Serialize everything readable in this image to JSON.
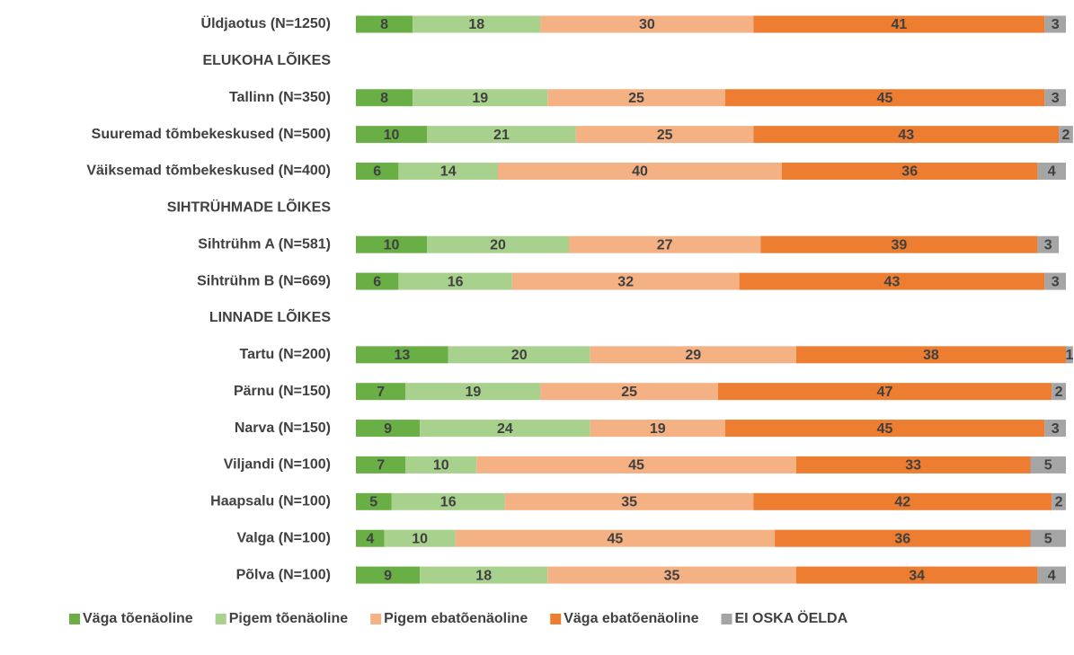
{
  "chart_data": {
    "type": "stacked-bar-horizontal",
    "categories": [
      "Üldjaotus (N=1250)",
      "ELUKOHA LÕIKES",
      "Tallinn (N=350)",
      "Suuremad tõmbekeskused (N=500)",
      "Väiksemad tõmbekeskused (N=400)",
      "SIHTRÜHMADE LÕIKES",
      "Sihtrühm A (N=581)",
      "Sihtrühm B (N=669)",
      "LINNADE LÕIKES",
      "Tartu (N=200)",
      "Pärnu (N=150)",
      "Narva (N=150)",
      "Viljandi (N=100)",
      "Haapsalu (N=100)",
      "Valga (N=100)",
      "Põlva (N=100)"
    ],
    "series": [
      {
        "name": "Väga tõenäoline",
        "color": "#6aaf46",
        "values": [
          8,
          null,
          8,
          10,
          6,
          null,
          10,
          6,
          null,
          13,
          7,
          9,
          7,
          5,
          4,
          9
        ]
      },
      {
        "name": "Pigem tõenäoline",
        "color": "#a9d18e",
        "values": [
          18,
          null,
          19,
          21,
          14,
          null,
          20,
          16,
          null,
          20,
          19,
          24,
          10,
          16,
          10,
          18
        ]
      },
      {
        "name": "Pigem ebatõenäoline",
        "color": "#f4b183",
        "values": [
          30,
          null,
          25,
          25,
          40,
          null,
          27,
          32,
          null,
          29,
          25,
          19,
          45,
          35,
          45,
          35
        ]
      },
      {
        "name": "Väga ebatõenäoline",
        "color": "#ed7d31",
        "values": [
          41,
          null,
          45,
          43,
          36,
          null,
          39,
          43,
          null,
          38,
          47,
          45,
          33,
          42,
          36,
          34
        ]
      },
      {
        "name": "EI OSKA ÖELDA",
        "color": "#a5a5a5",
        "values": [
          3,
          null,
          3,
          2,
          4,
          null,
          3,
          3,
          null,
          1,
          2,
          3,
          5,
          2,
          5,
          4
        ]
      }
    ],
    "xlim": [
      0,
      100
    ],
    "legend": "bottom"
  }
}
